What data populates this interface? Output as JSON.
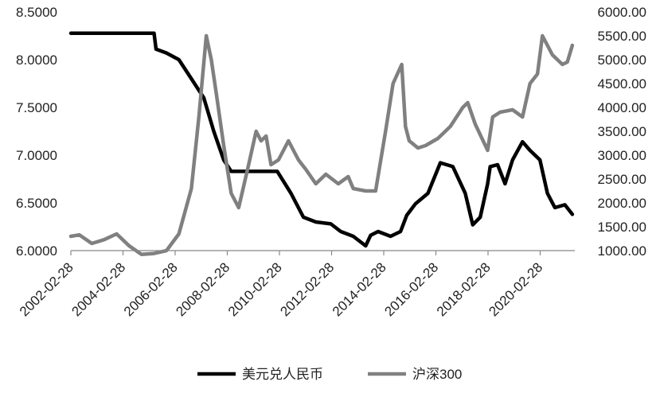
{
  "chart_data": {
    "type": "line",
    "title": "",
    "legend_position": "bottom",
    "grid": false,
    "x_tick_labels": [
      "2002-02-28",
      "2004-02-28",
      "2006-02-28",
      "2008-02-28",
      "2010-02-28",
      "2012-02-28",
      "2014-02-28",
      "2016-02-28",
      "2018-02-28",
      "2020-02-28"
    ],
    "x_range": [
      2002.16,
      2022.4
    ],
    "left_axis": {
      "ylim": [
        6.0,
        8.5
      ],
      "tick_labels": [
        "6.0000",
        "6.5000",
        "7.0000",
        "7.5000",
        "8.0000",
        "8.5000"
      ]
    },
    "right_axis": {
      "ylim": [
        1000,
        6000
      ],
      "tick_labels": [
        "1000.00",
        "1500.00",
        "2000.00",
        "2500.00",
        "3000.00",
        "3500.00",
        "4000.00",
        "4500.00",
        "5000.00",
        "5500.00",
        "6000.00"
      ]
    },
    "series": [
      {
        "name": "美元兑人民币",
        "axis": "left",
        "color": "#000000",
        "x": [
          2002.16,
          2005.5,
          2005.58,
          2006.0,
          2006.5,
          2007.0,
          2007.5,
          2007.9,
          2008.3,
          2008.6,
          2009.0,
          2010.0,
          2010.45,
          2011.0,
          2011.5,
          2012.0,
          2012.6,
          2013.0,
          2013.5,
          2014.0,
          2014.2,
          2014.5,
          2015.0,
          2015.4,
          2015.65,
          2016.0,
          2016.5,
          2017.0,
          2017.5,
          2018.0,
          2018.3,
          2018.6,
          2018.9,
          2019.0,
          2019.3,
          2019.6,
          2019.9,
          2020.3,
          2020.6,
          2021.0,
          2021.3,
          2021.6,
          2022.0,
          2022.3
        ],
        "y": [
          8.277,
          8.277,
          8.11,
          8.07,
          8.0,
          7.8,
          7.6,
          7.25,
          6.95,
          6.83,
          6.83,
          6.83,
          6.83,
          6.6,
          6.35,
          6.3,
          6.28,
          6.2,
          6.15,
          6.05,
          6.16,
          6.2,
          6.15,
          6.2,
          6.37,
          6.49,
          6.6,
          6.92,
          6.88,
          6.6,
          6.27,
          6.35,
          6.7,
          6.88,
          6.9,
          6.7,
          6.95,
          7.14,
          7.05,
          6.95,
          6.6,
          6.45,
          6.48,
          6.38
        ]
      },
      {
        "name": "沪深300",
        "axis": "right",
        "color": "#808080",
        "x": [
          2002.16,
          2002.5,
          2003.0,
          2003.5,
          2004.0,
          2004.5,
          2005.0,
          2005.5,
          2006.0,
          2006.5,
          2007.0,
          2007.3,
          2007.6,
          2007.8,
          2008.0,
          2008.3,
          2008.6,
          2008.9,
          2009.3,
          2009.6,
          2009.8,
          2010.0,
          2010.2,
          2010.5,
          2010.9,
          2011.3,
          2011.6,
          2012.0,
          2012.4,
          2012.9,
          2013.3,
          2013.5,
          2014.0,
          2014.4,
          2014.8,
          2015.1,
          2015.45,
          2015.6,
          2015.75,
          2016.1,
          2016.4,
          2016.9,
          2017.4,
          2017.9,
          2018.1,
          2018.4,
          2018.9,
          2019.1,
          2019.4,
          2019.9,
          2020.3,
          2020.6,
          2020.9,
          2021.1,
          2021.5,
          2021.9,
          2022.1,
          2022.3
        ],
        "y": [
          1300,
          1330,
          1150,
          1230,
          1350,
          1100,
          920,
          940,
          1000,
          1350,
          2300,
          3800,
          5500,
          5000,
          4300,
          3200,
          2200,
          1900,
          2800,
          3500,
          3300,
          3400,
          2800,
          2900,
          3300,
          2900,
          2700,
          2400,
          2600,
          2400,
          2550,
          2300,
          2250,
          2250,
          3500,
          4500,
          4900,
          3600,
          3300,
          3150,
          3200,
          3350,
          3600,
          4000,
          4100,
          3650,
          3100,
          3800,
          3900,
          3950,
          3800,
          4500,
          4700,
          5500,
          5100,
          4900,
          4950,
          5300
        ]
      }
    ]
  }
}
